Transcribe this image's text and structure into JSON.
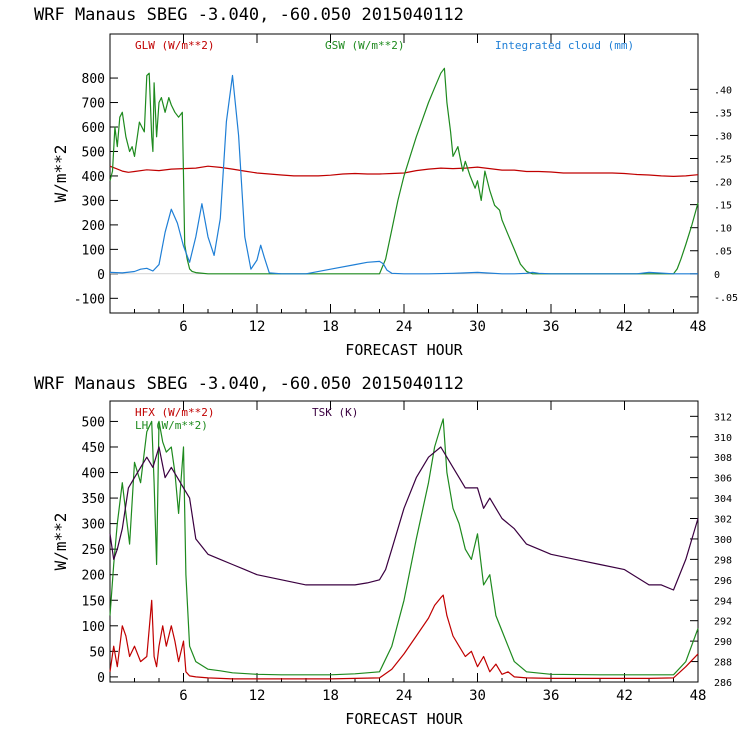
{
  "colors": {
    "red": "#c00000",
    "green": "#1e8a1e",
    "blue": "#1f7fd6",
    "purple": "#3a0040",
    "axis": "#000000"
  },
  "chart_data": [
    {
      "type": "line",
      "title": "WRF   Manaus SBEG   -3.040, -60.050  2015040112",
      "xlabel": "FORECAST HOUR",
      "ylabel": "W/m**2",
      "xlim": [
        0,
        48
      ],
      "ylim": [
        -160,
        980
      ],
      "y2lim": [
        -0.085,
        0.52
      ],
      "xticks": [
        6,
        12,
        18,
        24,
        30,
        36,
        42,
        48
      ],
      "yticks": [
        -100,
        0,
        100,
        200,
        300,
        400,
        500,
        600,
        700,
        800
      ],
      "ytick_labels": [
        "-100",
        "0",
        "100",
        "200",
        "300",
        "400",
        "500",
        "600",
        "700",
        "800"
      ],
      "y2ticks": [
        -0.05,
        0,
        0.05,
        0.1,
        0.15,
        0.2,
        0.25,
        0.3,
        0.35,
        0.4
      ],
      "y2tick_labels": [
        "-.05",
        "0",
        ".05",
        ".10",
        ".15",
        ".20",
        ".25",
        ".30",
        ".35",
        ".40"
      ],
      "legend": [
        {
          "label": "GLW (W/m**2)",
          "color": "#c00000"
        },
        {
          "label": "GSW (W/m**2)",
          "color": "#1e8a1e"
        },
        {
          "label": "Integrated cloud (mm)",
          "color": "#1f7fd6"
        }
      ],
      "series": [
        {
          "name": "GLW (W/m**2)",
          "axis": "left",
          "color": "#c00000",
          "x": [
            0,
            0.5,
            1,
            1.5,
            2,
            3,
            4,
            5,
            6,
            7,
            8,
            9,
            10,
            11,
            12,
            13,
            14,
            15,
            16,
            17,
            18,
            19,
            20,
            21,
            22,
            23,
            24,
            25,
            26,
            27,
            28,
            29,
            30,
            31,
            32,
            33,
            34,
            35,
            36,
            37,
            38,
            39,
            40,
            41,
            42,
            43,
            44,
            45,
            46,
            47,
            48
          ],
          "y": [
            440,
            430,
            420,
            415,
            418,
            425,
            422,
            428,
            430,
            432,
            440,
            435,
            428,
            420,
            412,
            408,
            404,
            400,
            400,
            400,
            403,
            408,
            410,
            408,
            408,
            410,
            412,
            422,
            428,
            432,
            430,
            432,
            436,
            430,
            424,
            424,
            418,
            418,
            416,
            412,
            412,
            412,
            412,
            412,
            410,
            406,
            404,
            400,
            398,
            400,
            405
          ]
        },
        {
          "name": "GSW (W/m**2)",
          "axis": "left",
          "color": "#1e8a1e",
          "x": [
            0,
            0.2,
            0.4,
            0.6,
            0.8,
            1,
            1.3,
            1.6,
            1.8,
            2,
            2.4,
            2.8,
            3,
            3.2,
            3.4,
            3.5,
            3.6,
            3.8,
            4,
            4.2,
            4.5,
            4.8,
            5,
            5.3,
            5.6,
            5.9,
            6,
            6.1,
            6.3,
            6.5,
            6.7,
            7,
            8,
            9,
            10,
            11,
            12,
            13,
            14,
            15,
            16,
            17,
            18,
            19,
            20,
            21,
            22,
            22.5,
            23,
            23.5,
            24,
            24.5,
            25,
            25.5,
            26,
            26.5,
            27,
            27.3,
            27.5,
            27.8,
            28,
            28.4,
            28.8,
            29,
            29.4,
            29.8,
            30,
            30.3,
            30.6,
            31,
            31.4,
            31.8,
            32,
            32.5,
            33,
            33.5,
            34,
            34.5,
            35,
            36,
            40,
            44,
            45,
            46,
            46.3,
            46.6,
            47,
            47.5,
            48
          ],
          "y": [
            380,
            420,
            600,
            520,
            640,
            660,
            560,
            500,
            520,
            480,
            620,
            580,
            810,
            820,
            560,
            500,
            780,
            560,
            700,
            720,
            660,
            720,
            690,
            660,
            640,
            660,
            400,
            120,
            60,
            20,
            10,
            5,
            0,
            0,
            0,
            0,
            0,
            0,
            0,
            0,
            0,
            0,
            0,
            0,
            0,
            0,
            0,
            60,
            180,
            300,
            400,
            480,
            560,
            630,
            700,
            760,
            820,
            840,
            700,
            580,
            480,
            520,
            420,
            460,
            400,
            350,
            380,
            300,
            420,
            340,
            280,
            260,
            220,
            160,
            100,
            40,
            10,
            0,
            0,
            0,
            0,
            0,
            0,
            0,
            20,
            60,
            120,
            200,
            290
          ]
        },
        {
          "name": "Integrated cloud (mm)",
          "axis": "right",
          "color": "#1f7fd6",
          "x": [
            0,
            1,
            2,
            2.5,
            3,
            3.5,
            4,
            4.5,
            5,
            5.5,
            6,
            6.5,
            7,
            7.5,
            8,
            8.5,
            9,
            9.5,
            10,
            10.5,
            11,
            11.5,
            12,
            12.3,
            12.6,
            13,
            14,
            16,
            18,
            20,
            21,
            22,
            22.3,
            22.6,
            23,
            24,
            26,
            28,
            30,
            32,
            33,
            34,
            34.5,
            35,
            36,
            40,
            43,
            44,
            46,
            48
          ],
          "y": [
            0.003,
            0.002,
            0.005,
            0.01,
            0.012,
            0.006,
            0.02,
            0.09,
            0.14,
            0.11,
            0.06,
            0.025,
            0.08,
            0.152,
            0.08,
            0.04,
            0.12,
            0.33,
            0.43,
            0.3,
            0.08,
            0.01,
            0.03,
            0.062,
            0.035,
            0.002,
            0,
            0,
            0.01,
            0.02,
            0.025,
            0.027,
            0.022,
            0.008,
            0.001,
            0,
            0,
            0.001,
            0.003,
            0,
            0,
            0.001,
            0.003,
            0.001,
            0,
            0,
            0,
            0.003,
            0,
            0
          ]
        }
      ]
    },
    {
      "type": "line",
      "title": "WRF   Manaus SBEG   -3.040, -60.050  2015040112",
      "xlabel": "FORECAST HOUR",
      "ylabel": "W/m**2",
      "xlim": [
        0,
        48
      ],
      "ylim": [
        -10,
        540
      ],
      "y2lim": [
        286,
        313.5
      ],
      "xticks": [
        6,
        12,
        18,
        24,
        30,
        36,
        42,
        48
      ],
      "yticks": [
        0,
        50,
        100,
        150,
        200,
        250,
        300,
        350,
        400,
        450,
        500
      ],
      "ytick_labels": [
        "0",
        "50",
        "100",
        "150",
        "200",
        "250",
        "300",
        "350",
        "400",
        "450",
        "500"
      ],
      "y2ticks": [
        286,
        288,
        290,
        292,
        294,
        296,
        298,
        300,
        302,
        304,
        306,
        308,
        310,
        312
      ],
      "y2tick_labels": [
        "286",
        "288",
        "290",
        "292",
        "294",
        "296",
        "298",
        "300",
        "302",
        "304",
        "306",
        "308",
        "310",
        "312"
      ],
      "legend": [
        {
          "label": "HFX (W/m**2)",
          "color": "#c00000"
        },
        {
          "label": "LH  (W/m**2)",
          "color": "#1e8a1e"
        },
        {
          "label": "TSK (K)",
          "color": "#3a0040"
        }
      ],
      "series": [
        {
          "name": "HFX (W/m**2)",
          "axis": "left",
          "color": "#c00000",
          "x": [
            0,
            0.3,
            0.6,
            1,
            1.3,
            1.6,
            2,
            2.5,
            3,
            3.4,
            3.6,
            3.8,
            4,
            4.3,
            4.6,
            5,
            5.3,
            5.6,
            6,
            6.2,
            6.5,
            7,
            8,
            9,
            10,
            12,
            14,
            16,
            18,
            20,
            22,
            23,
            24,
            25,
            26,
            26.5,
            27,
            27.2,
            27.5,
            28,
            28.5,
            29,
            29.5,
            30,
            30.5,
            31,
            31.5,
            32,
            32.5,
            33,
            34,
            36,
            40,
            44,
            46,
            47,
            48
          ],
          "y": [
            10,
            60,
            20,
            100,
            80,
            40,
            60,
            30,
            40,
            150,
            40,
            20,
            60,
            100,
            60,
            100,
            70,
            30,
            70,
            10,
            2,
            0,
            -2,
            -3,
            -4,
            -4,
            -4,
            -4,
            -4,
            -3,
            -2,
            15,
            45,
            80,
            115,
            140,
            155,
            160,
            120,
            80,
            60,
            40,
            50,
            20,
            40,
            10,
            25,
            5,
            10,
            0,
            -2,
            -3,
            -3,
            -3,
            -2,
            20,
            45
          ]
        },
        {
          "name": "LH  (W/m**2)",
          "axis": "left",
          "color": "#1e8a1e",
          "x": [
            0,
            0.3,
            0.6,
            1,
            1.3,
            1.6,
            2,
            2.5,
            3,
            3.4,
            3.6,
            3.8,
            4,
            4.3,
            4.6,
            5,
            5.3,
            5.6,
            6,
            6.2,
            6.5,
            7,
            8,
            9,
            10,
            12,
            14,
            16,
            18,
            20,
            22,
            23,
            24,
            25,
            26,
            26.5,
            27,
            27.2,
            27.5,
            28,
            28.5,
            29,
            29.5,
            30,
            30.5,
            31,
            31.5,
            32,
            32.5,
            33,
            34,
            36,
            40,
            44,
            46,
            47,
            48
          ],
          "y": [
            120,
            220,
            300,
            380,
            320,
            260,
            420,
            380,
            480,
            500,
            380,
            220,
            500,
            460,
            440,
            450,
            400,
            320,
            450,
            200,
            60,
            30,
            15,
            12,
            8,
            5,
            4,
            4,
            4,
            6,
            10,
            60,
            150,
            270,
            380,
            450,
            490,
            505,
            400,
            330,
            300,
            250,
            230,
            280,
            180,
            200,
            120,
            90,
            60,
            30,
            10,
            5,
            4,
            4,
            4,
            30,
            95
          ]
        },
        {
          "name": "TSK (K)",
          "axis": "right",
          "color": "#3a0040",
          "x": [
            0,
            0.3,
            0.6,
            1,
            1.5,
            2,
            2.5,
            3,
            3.5,
            4,
            4.5,
            5,
            5.5,
            6,
            6.5,
            7,
            8,
            9,
            10,
            11,
            12,
            14,
            16,
            17,
            18,
            20,
            21,
            22,
            22.5,
            23,
            24,
            25,
            26,
            27,
            27.5,
            28,
            28.5,
            29,
            30,
            30.5,
            31,
            31.5,
            32,
            33,
            34,
            35,
            36,
            38,
            40,
            42,
            44,
            45,
            46,
            47,
            48
          ],
          "y": [
            300.5,
            298,
            299,
            301,
            305,
            306,
            307,
            308,
            307,
            309,
            306,
            307,
            306,
            305,
            304,
            300,
            298.5,
            298,
            297.5,
            297,
            296.5,
            296,
            295.5,
            295.5,
            295.5,
            295.5,
            295.7,
            296,
            297,
            299,
            303,
            306,
            308,
            309,
            308,
            307,
            306,
            305,
            305,
            303,
            304,
            303,
            302,
            301,
            299.5,
            299,
            298.5,
            298,
            297.5,
            297,
            295.5,
            295.5,
            295,
            298,
            302
          ]
        }
      ]
    }
  ]
}
